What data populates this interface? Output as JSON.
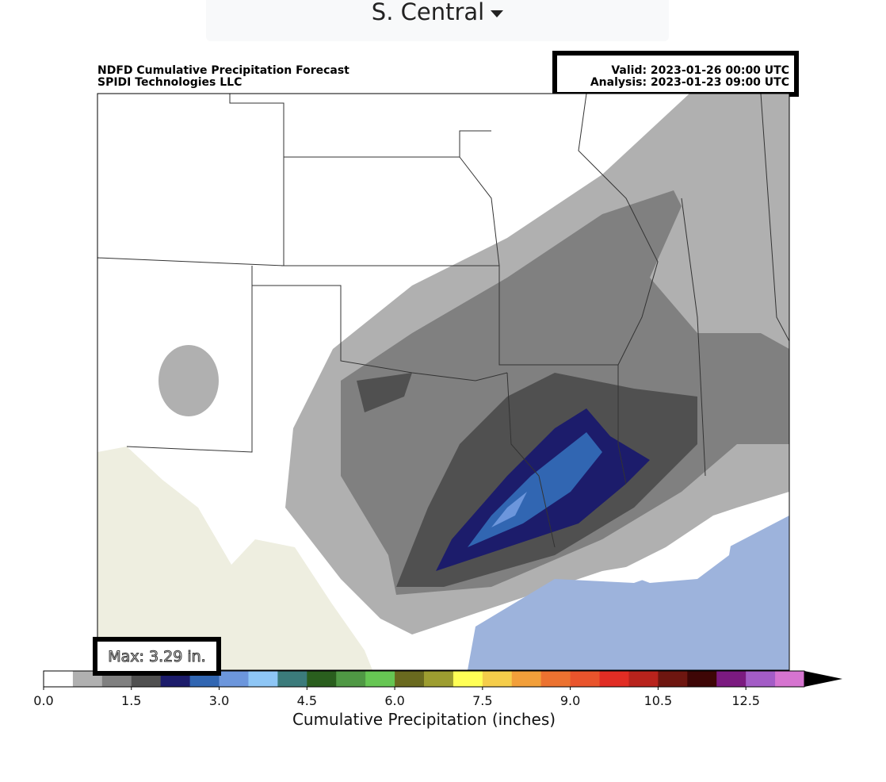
{
  "dropdown": {
    "label": "S. Central"
  },
  "map": {
    "title": "NDFD Cumulative Precipitation Forecast",
    "credit": "SPIDI Technologies LLC",
    "valid": "Valid: 2023-01-26 00:00 UTC",
    "analysis": "Analysis: 2023-01-23 09:00 UTC",
    "max": "Max: 3.29 in."
  },
  "colorbar": {
    "label": "Cumulative Precipitation (inches)",
    "ticks": [
      "0.0",
      "1.5",
      "3.0",
      "4.5",
      "6.0",
      "7.5",
      "9.0",
      "10.5",
      "12.5"
    ],
    "colors": [
      "#ffffff",
      "#b0b0b0",
      "#808080",
      "#505050",
      "#1c1c6b",
      "#3166b2",
      "#6c96dc",
      "#8ec6f5",
      "#3b7b7b",
      "#2a5e1e",
      "#4f9844",
      "#66c653",
      "#6a6a1f",
      "#9d9d30",
      "#ffff55",
      "#f5cd4a",
      "#f29f3a",
      "#ec7230",
      "#e9542c",
      "#e12d24",
      "#b8231c",
      "#6e1610",
      "#3e0606",
      "#7b1a80",
      "#a35cc6",
      "#d674d0"
    ]
  }
}
